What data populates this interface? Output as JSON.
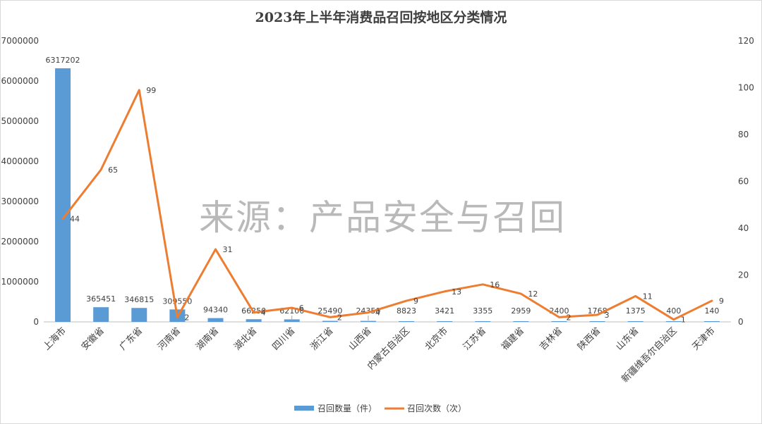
{
  "chart_data": {
    "type": "bar+line",
    "title": "2023年上半年消费品召回按地区分类情况",
    "watermark": "来源：产品安全与召回",
    "categories": [
      "上海市",
      "安徽省",
      "广东省",
      "河南省",
      "湖南省",
      "湖北省",
      "四川省",
      "浙江省",
      "山西省",
      "内蒙古自治区",
      "北京市",
      "江苏省",
      "福建省",
      "吉林省",
      "陕西省",
      "山东省",
      "新疆维吾尔自治区",
      "天津市"
    ],
    "series": [
      {
        "name": "召回数量（件）",
        "type": "bar",
        "axis": "left",
        "color": "#5b9bd5",
        "values": [
          6317202,
          365451,
          346815,
          309550,
          94340,
          66250,
          62100,
          25490,
          24350,
          8823,
          3421,
          3355,
          2959,
          2400,
          1768,
          1375,
          400,
          140
        ]
      },
      {
        "name": "召回次数（次）",
        "type": "line",
        "axis": "right",
        "color": "#ed7d31",
        "values": [
          44,
          65,
          99,
          2,
          31,
          4,
          6,
          2,
          4,
          9,
          13,
          16,
          12,
          2,
          3,
          11,
          1,
          9
        ]
      }
    ],
    "y_left": {
      "min": 0,
      "max": 7000000,
      "step": 1000000,
      "ticks": [
        "0",
        "1000000",
        "2000000",
        "3000000",
        "4000000",
        "5000000",
        "6000000",
        "7000000"
      ]
    },
    "y_right": {
      "min": 0,
      "max": 120,
      "step": 20,
      "ticks": [
        "0",
        "20",
        "40",
        "60",
        "80",
        "100",
        "120"
      ]
    },
    "legend_position": "bottom",
    "grid": false
  }
}
